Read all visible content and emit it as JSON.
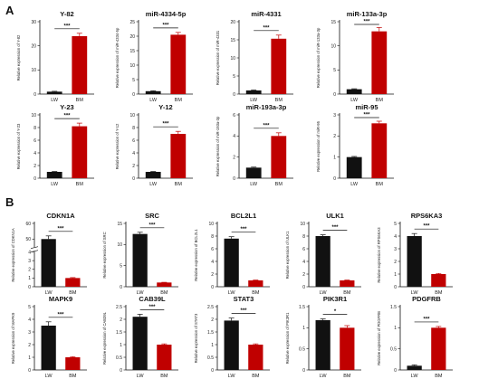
{
  "panels": [
    {
      "letter": "A"
    },
    {
      "letter": "B"
    }
  ],
  "colors": {
    "LW": "#111111",
    "BM": "#c00000",
    "axis": "#111111"
  },
  "chart_data": [
    {
      "type": "bar",
      "panel": "A",
      "title": "Y-82",
      "ylabel": "Relative expression of Y-82",
      "categories": [
        "LW",
        "BM"
      ],
      "values": [
        1.0,
        24.0
      ],
      "errors": [
        0.15,
        1.2
      ],
      "ylim": [
        0,
        30
      ],
      "yticks": [
        0,
        10,
        20,
        30
      ],
      "significance": "***"
    },
    {
      "type": "bar",
      "panel": "A",
      "title": "miR-4334-5p",
      "ylabel": "Relative expression of miR-4334-5p",
      "categories": [
        "LW",
        "BM"
      ],
      "values": [
        1.0,
        20.5
      ],
      "errors": [
        0.15,
        0.8
      ],
      "ylim": [
        0,
        25
      ],
      "yticks": [
        0,
        5,
        10,
        15,
        20,
        25
      ],
      "significance": "***"
    },
    {
      "type": "bar",
      "panel": "A",
      "title": "miR-4331",
      "ylabel": "Relative expression of miR-4331",
      "categories": [
        "LW",
        "BM"
      ],
      "values": [
        1.0,
        15.3
      ],
      "errors": [
        0.1,
        1.0
      ],
      "ylim": [
        0,
        20
      ],
      "yticks": [
        0,
        5,
        10,
        15,
        20
      ],
      "significance": "***"
    },
    {
      "type": "bar",
      "panel": "A",
      "title": "miR-133a-3p",
      "ylabel": "Relative expression of miR-133a-3p",
      "categories": [
        "LW",
        "BM"
      ],
      "values": [
        1.0,
        13.0
      ],
      "errors": [
        0.1,
        0.8
      ],
      "ylim": [
        0,
        15
      ],
      "yticks": [
        0,
        5,
        10,
        15
      ],
      "significance": "***"
    },
    {
      "type": "bar",
      "panel": "A",
      "title": "Y-23",
      "ylabel": "Relative expression of Y-23",
      "categories": [
        "LW",
        "BM"
      ],
      "values": [
        1.0,
        8.2
      ],
      "errors": [
        0.05,
        0.5
      ],
      "ylim": [
        0,
        10
      ],
      "yticks": [
        0,
        2,
        4,
        6,
        8,
        10
      ],
      "significance": "***"
    },
    {
      "type": "bar",
      "panel": "A",
      "title": "Y-12",
      "ylabel": "Relative expression of Y-12",
      "categories": [
        "LW",
        "BM"
      ],
      "values": [
        1.0,
        7.0
      ],
      "errors": [
        0.05,
        0.4
      ],
      "ylim": [
        0,
        10
      ],
      "yticks": [
        0,
        2,
        4,
        6,
        8,
        10
      ],
      "significance": "***"
    },
    {
      "type": "bar",
      "panel": "A",
      "title": "miR-193a-3p",
      "ylabel": "Relative expression of miR-193a-3p",
      "categories": [
        "LW",
        "BM"
      ],
      "values": [
        1.0,
        4.0
      ],
      "errors": [
        0.05,
        0.3
      ],
      "ylim": [
        0,
        6
      ],
      "yticks": [
        0,
        2,
        4,
        6
      ],
      "significance": "***"
    },
    {
      "type": "bar",
      "panel": "A",
      "title": "miR-95",
      "ylabel": "Relative expression of miR-95",
      "categories": [
        "LW",
        "BM"
      ],
      "values": [
        1.0,
        2.6
      ],
      "errors": [
        0.03,
        0.1
      ],
      "ylim": [
        0,
        3
      ],
      "yticks": [
        0,
        1,
        2,
        3
      ],
      "significance": "***"
    },
    {
      "type": "bar",
      "panel": "B",
      "title": "CDKN1A",
      "ylabel": "Relative expression of CDKN1A",
      "categories": [
        "LW",
        "BM"
      ],
      "values": [
        50.0,
        1.0
      ],
      "errors": [
        2.0,
        0.05
      ],
      "ylim": [
        0,
        60
      ],
      "yticks": [
        0,
        1,
        2,
        3,
        4,
        50,
        60
      ],
      "axis_break": [
        4,
        45
      ],
      "significance": "***"
    },
    {
      "type": "bar",
      "panel": "B",
      "title": "SRC",
      "ylabel": "Relative expression of SRC",
      "categories": [
        "LW",
        "BM"
      ],
      "values": [
        12.5,
        1.0
      ],
      "errors": [
        0.4,
        0.05
      ],
      "ylim": [
        0,
        15
      ],
      "yticks": [
        0,
        5,
        10,
        15
      ],
      "significance": "***"
    },
    {
      "type": "bar",
      "panel": "B",
      "title": "BCL2L1",
      "ylabel": "Relative expression of BCL2L1",
      "categories": [
        "LW",
        "BM"
      ],
      "values": [
        7.6,
        1.0
      ],
      "errors": [
        0.3,
        0.05
      ],
      "ylim": [
        0,
        10
      ],
      "yticks": [
        0,
        2,
        4,
        6,
        8,
        10
      ],
      "significance": "***"
    },
    {
      "type": "bar",
      "panel": "B",
      "title": "ULK1",
      "ylabel": "Relative expression of ULK1",
      "categories": [
        "LW",
        "BM"
      ],
      "values": [
        8.0,
        1.0
      ],
      "errors": [
        0.2,
        0.05
      ],
      "ylim": [
        0,
        10
      ],
      "yticks": [
        0,
        2,
        4,
        6,
        8,
        10
      ],
      "significance": "***"
    },
    {
      "type": "bar",
      "panel": "B",
      "title": "RPS6KA3",
      "ylabel": "Relative expression of RPS6KA3",
      "categories": [
        "LW",
        "BM"
      ],
      "values": [
        4.0,
        1.0
      ],
      "errors": [
        0.2,
        0.05
      ],
      "ylim": [
        0,
        5
      ],
      "yticks": [
        0,
        1,
        2,
        3,
        4,
        5
      ],
      "significance": "***"
    },
    {
      "type": "bar",
      "panel": "B",
      "title": "MAPK9",
      "ylabel": "Relative expression of MAPK9",
      "categories": [
        "LW",
        "BM"
      ],
      "values": [
        3.5,
        1.0
      ],
      "errors": [
        0.3,
        0.05
      ],
      "ylim": [
        0,
        5
      ],
      "yticks": [
        0,
        1,
        2,
        3,
        4,
        5
      ],
      "significance": "***"
    },
    {
      "type": "bar",
      "panel": "B",
      "title": "CAB39L",
      "ylabel": "Relative expression of CAB39L",
      "categories": [
        "LW",
        "BM"
      ],
      "values": [
        2.1,
        1.0
      ],
      "errors": [
        0.1,
        0.03
      ],
      "ylim": [
        0,
        2.5
      ],
      "yticks": [
        0,
        0.5,
        1.0,
        1.5,
        2.0,
        2.5
      ],
      "significance": "***"
    },
    {
      "type": "bar",
      "panel": "B",
      "title": "STAT3",
      "ylabel": "Relative expression of STAT3",
      "categories": [
        "LW",
        "BM"
      ],
      "values": [
        1.95,
        1.0
      ],
      "errors": [
        0.1,
        0.03
      ],
      "ylim": [
        0,
        2.5
      ],
      "yticks": [
        0,
        0.5,
        1.0,
        1.5,
        2.0,
        2.5
      ],
      "significance": "***"
    },
    {
      "type": "bar",
      "panel": "B",
      "title": "PIK3R1",
      "ylabel": "Relative expression of PIK3R1",
      "categories": [
        "LW",
        "BM"
      ],
      "values": [
        1.18,
        1.0
      ],
      "errors": [
        0.03,
        0.05
      ],
      "ylim": [
        0,
        1.5
      ],
      "yticks": [
        0,
        0.5,
        1.0,
        1.5
      ],
      "significance": "*"
    },
    {
      "type": "bar",
      "panel": "B",
      "title": "PDGFRB",
      "ylabel": "Relative expression of PDGFRB",
      "categories": [
        "LW",
        "BM"
      ],
      "values": [
        0.1,
        1.0
      ],
      "errors": [
        0.02,
        0.03
      ],
      "ylim": [
        0,
        1.5
      ],
      "yticks": [
        0,
        0.5,
        1.0,
        1.5
      ],
      "significance": "***"
    }
  ]
}
